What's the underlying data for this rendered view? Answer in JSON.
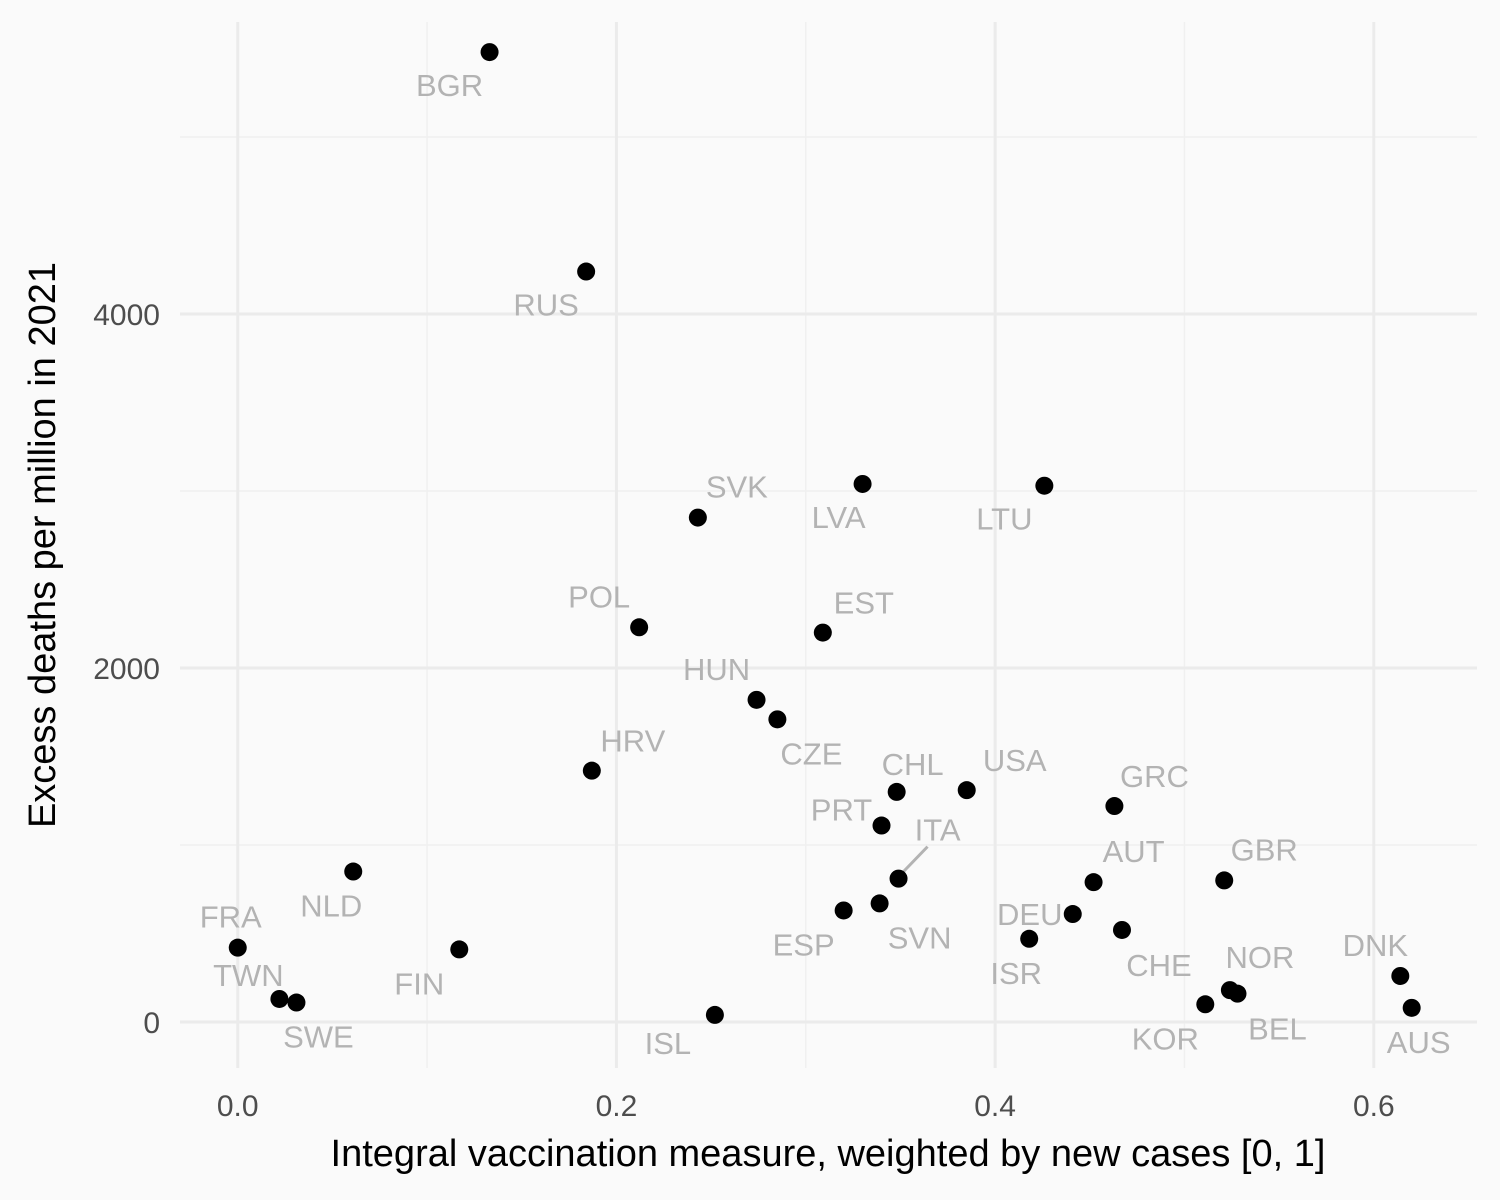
{
  "chart_data": {
    "type": "scatter",
    "xlabel": "Integral vaccination measure, weighted by new cases [0, 1]",
    "ylabel": "Excess deaths per million in 2021",
    "xlim": [
      -0.0305,
      0.6545
    ],
    "ylim": [
      -260,
      5650
    ],
    "x_ticks": [
      0.0,
      0.2,
      0.4,
      0.6
    ],
    "x_tick_labels": [
      "0.0",
      "0.2",
      "0.4",
      "0.6"
    ],
    "y_ticks": [
      0,
      2000,
      4000
    ],
    "y_tick_labels": [
      "0",
      "2000",
      "4000"
    ],
    "grid": true,
    "points": [
      {
        "label": "BGR",
        "x": 0.133,
        "y": 5480
      },
      {
        "label": "RUS",
        "x": 0.184,
        "y": 4240
      },
      {
        "label": "SVK",
        "x": 0.243,
        "y": 2850
      },
      {
        "label": "LVA",
        "x": 0.33,
        "y": 3040
      },
      {
        "label": "LTU",
        "x": 0.426,
        "y": 3030
      },
      {
        "label": "POL",
        "x": 0.212,
        "y": 2230
      },
      {
        "label": "EST",
        "x": 0.309,
        "y": 2200
      },
      {
        "label": "HUN",
        "x": 0.274,
        "y": 1820
      },
      {
        "label": "CZE",
        "x": 0.285,
        "y": 1710
      },
      {
        "label": "HRV",
        "x": 0.187,
        "y": 1420
      },
      {
        "label": "CHL",
        "x": 0.348,
        "y": 1300
      },
      {
        "label": "USA",
        "x": 0.385,
        "y": 1310
      },
      {
        "label": "GRC",
        "x": 0.463,
        "y": 1220
      },
      {
        "label": "PRT",
        "x": 0.34,
        "y": 1110
      },
      {
        "label": "ITA",
        "x": 0.349,
        "y": 810
      },
      {
        "label": "AUT",
        "x": 0.452,
        "y": 790
      },
      {
        "label": "GBR",
        "x": 0.521,
        "y": 800
      },
      {
        "label": "DEU",
        "x": 0.441,
        "y": 610
      },
      {
        "label": "ESP",
        "x": 0.32,
        "y": 630
      },
      {
        "label": "SVN",
        "x": 0.339,
        "y": 670
      },
      {
        "label": "CHE",
        "x": 0.467,
        "y": 520
      },
      {
        "label": "ISR",
        "x": 0.418,
        "y": 470
      },
      {
        "label": "NLD",
        "x": 0.061,
        "y": 850
      },
      {
        "label": "FRA",
        "x": 0.0,
        "y": 420
      },
      {
        "label": "FIN",
        "x": 0.117,
        "y": 410
      },
      {
        "label": "TWN",
        "x": 0.022,
        "y": 130
      },
      {
        "label": "SWE",
        "x": 0.031,
        "y": 110
      },
      {
        "label": "ISL",
        "x": 0.252,
        "y": 40
      },
      {
        "label": "KOR",
        "x": 0.511,
        "y": 100
      },
      {
        "label": "NOR",
        "x": 0.524,
        "y": 180
      },
      {
        "label": "BEL",
        "x": 0.528,
        "y": 160
      },
      {
        "label": "DNK",
        "x": 0.614,
        "y": 260
      },
      {
        "label": "AUS",
        "x": 0.62,
        "y": 80
      }
    ]
  }
}
